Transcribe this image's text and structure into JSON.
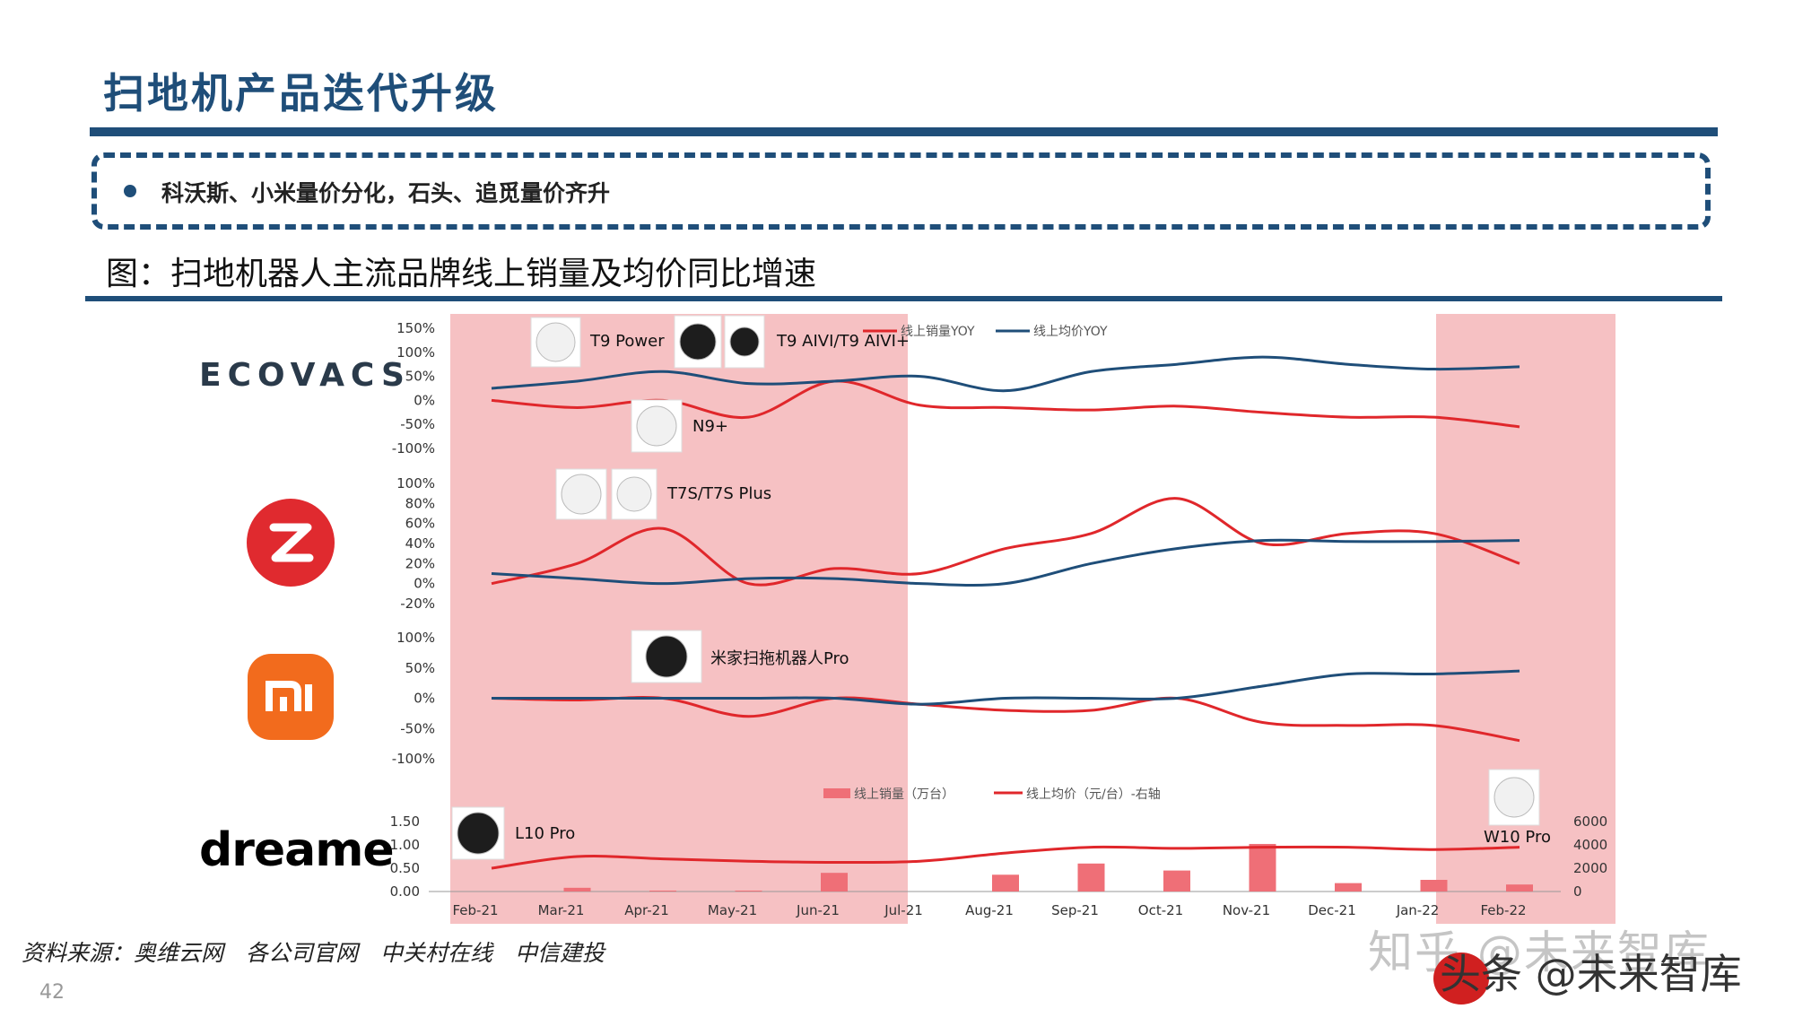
{
  "slide": {
    "title": "扫地机产品迭代升级",
    "bullet": "科沃斯、小米量价分化，石头、追觅量价齐升",
    "figure_caption": "图：扫地机器人主流品牌线上销量及均价同比增速",
    "source": "资料来源：奥维云网　各公司官网　中关村在线　中信建投",
    "page_number": "42"
  },
  "brands": {
    "ecovacs": "ECOVACS",
    "roborock_icon": "roborock-logo-icon",
    "xiaomi_icon": "xiaomi-mi-logo-icon",
    "dreame": "dreame"
  },
  "watermarks": {
    "line1": "知乎 @未来智库",
    "line2": "头条 @未来智库"
  },
  "colors": {
    "title": "#1f4e79",
    "shade": "#f6c1c3",
    "red": "#e0272b",
    "blue": "#1f4e79",
    "bar": "#ef6f77",
    "roborock": "#e02a2f",
    "xiaomi": "#f26b1d"
  },
  "chart_data": [
    {
      "type": "line",
      "brand": "ECOVACS",
      "x": [
        "Feb-21",
        "Mar-21",
        "Apr-21",
        "May-21",
        "Jun-21",
        "Jul-21",
        "Aug-21",
        "Sep-21",
        "Oct-21",
        "Nov-21",
        "Dec-21",
        "Jan-22",
        "Feb-22"
      ],
      "series": [
        {
          "name": "线上销量YOY",
          "values": [
            0,
            -15,
            0,
            -35,
            40,
            -10,
            -15,
            -20,
            -12,
            -25,
            -35,
            -35,
            -55
          ]
        },
        {
          "name": "线上均价YOY",
          "values": [
            25,
            40,
            60,
            35,
            40,
            50,
            20,
            60,
            75,
            90,
            75,
            65,
            70
          ]
        }
      ],
      "yticks": [
        "150%",
        "100%",
        "50%",
        "0%",
        "-50%",
        "-100%"
      ],
      "ylim": [
        -100,
        150
      ],
      "legend": [
        "线上销量YOY",
        "线上均价YOY"
      ],
      "annotations": [
        "T9 Power",
        "T9 AIVI/T9 AIVI+",
        "N9+"
      ]
    },
    {
      "type": "line",
      "brand": "Roborock",
      "x": [
        "Feb-21",
        "Mar-21",
        "Apr-21",
        "May-21",
        "Jun-21",
        "Jul-21",
        "Aug-21",
        "Sep-21",
        "Oct-21",
        "Nov-21",
        "Dec-21",
        "Jan-22",
        "Feb-22"
      ],
      "series": [
        {
          "name": "线上销量YOY",
          "values": [
            0,
            20,
            55,
            0,
            15,
            10,
            35,
            50,
            85,
            40,
            50,
            50,
            20
          ]
        },
        {
          "name": "线上均价YOY",
          "values": [
            10,
            5,
            0,
            5,
            5,
            0,
            0,
            20,
            35,
            43,
            42,
            42,
            43
          ]
        }
      ],
      "yticks": [
        "100%",
        "80%",
        "60%",
        "40%",
        "20%",
        "0%",
        "-20%"
      ],
      "ylim": [
        -20,
        100
      ],
      "annotations": [
        "T7S/T7S Plus"
      ]
    },
    {
      "type": "line",
      "brand": "Xiaomi",
      "x": [
        "Feb-21",
        "Mar-21",
        "Apr-21",
        "May-21",
        "Jun-21",
        "Jul-21",
        "Aug-21",
        "Sep-21",
        "Oct-21",
        "Nov-21",
        "Dec-21",
        "Jan-22",
        "Feb-22"
      ],
      "series": [
        {
          "name": "线上销量YOY",
          "values": [
            0,
            -3,
            0,
            -30,
            0,
            -10,
            -20,
            -20,
            0,
            -40,
            -45,
            -45,
            -70
          ]
        },
        {
          "name": "线上均价YOY",
          "values": [
            0,
            0,
            0,
            0,
            0,
            -10,
            0,
            0,
            0,
            20,
            40,
            40,
            45
          ]
        }
      ],
      "yticks": [
        "100%",
        "50%",
        "0%",
        "-50%",
        "-100%"
      ],
      "ylim": [
        -100,
        100
      ],
      "annotations": [
        "米家扫拖机器人Pro"
      ]
    },
    {
      "type": "bar",
      "brand": "Dreame",
      "x": [
        "Feb-21",
        "Mar-21",
        "Apr-21",
        "May-21",
        "Jun-21",
        "Jul-21",
        "Aug-21",
        "Sep-21",
        "Oct-21",
        "Nov-21",
        "Dec-21",
        "Jan-22",
        "Feb-22"
      ],
      "series": [
        {
          "name": "线上销量（万台）",
          "axis": "left",
          "values": [
            0,
            0.08,
            0.02,
            0.02,
            0.4,
            0,
            0.36,
            0.6,
            0.45,
            1.02,
            0.18,
            0.25,
            0.15
          ]
        },
        {
          "name": "线上均价（元/台）-右轴",
          "axis": "right",
          "values": [
            2000,
            3000,
            2800,
            2600,
            2500,
            2600,
            3300,
            3800,
            3700,
            3800,
            3800,
            3600,
            3800
          ]
        }
      ],
      "yticks_left": [
        "1.50",
        "1.00",
        "0.50",
        "0.00"
      ],
      "ylim_left": [
        0,
        1.5
      ],
      "yticks_right": [
        "6000",
        "4000",
        "2000",
        "0"
      ],
      "ylim_right": [
        0,
        6000
      ],
      "legend": [
        "线上销量（万台）",
        "线上均价（元/台）-右轴"
      ],
      "annotations": [
        "L10 Pro",
        "W10 Pro"
      ]
    }
  ]
}
